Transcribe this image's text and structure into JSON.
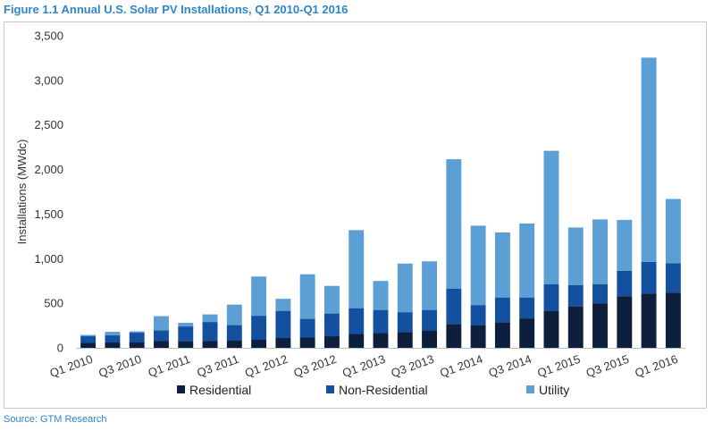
{
  "page": {
    "title": "Figure 1.1 Annual U.S. Solar PV Installations, Q1 2010-Q1 2016",
    "source": "Source: GTM Research"
  },
  "chart_data": {
    "type": "bar",
    "stacked": true,
    "title": "Figure 1.1 Annual U.S. Solar PV Installations, Q1 2010-Q1 2016",
    "xlabel": "",
    "ylabel": "Installations (MWdc)",
    "ylim": [
      0,
      3500
    ],
    "yticks": [
      0,
      500,
      1000,
      1500,
      2000,
      2500,
      3000,
      3500
    ],
    "ytick_labels": [
      "0",
      "500",
      "1,000",
      "1,500",
      "2,000",
      "2,500",
      "3,000",
      "3,500"
    ],
    "grid": false,
    "legend_position": "bottom",
    "categories": [
      "Q1 2010",
      "Q2 2010",
      "Q3 2010",
      "Q4 2010",
      "Q1 2011",
      "Q2 2011",
      "Q3 2011",
      "Q4 2011",
      "Q1 2012",
      "Q2 2012",
      "Q3 2012",
      "Q4 2012",
      "Q1 2013",
      "Q2 2013",
      "Q3 2013",
      "Q4 2013",
      "Q1 2014",
      "Q2 2014",
      "Q3 2014",
      "Q4 2014",
      "Q1 2015",
      "Q2 2015",
      "Q3 2015",
      "Q4 2015",
      "Q1 2016"
    ],
    "xtick_labels": [
      "Q1 2010",
      "Q3 2010",
      "Q1 2011",
      "Q3 2011",
      "Q1 2012",
      "Q3 2012",
      "Q1 2013",
      "Q3 2013",
      "Q1 2014",
      "Q3 2014",
      "Q1 2015",
      "Q3 2015",
      "Q1 2016"
    ],
    "series": [
      {
        "name": "Residential",
        "color": "#0d1f3c",
        "values": [
          55,
          60,
          60,
          75,
          70,
          75,
          80,
          90,
          110,
          115,
          130,
          155,
          165,
          175,
          195,
          265,
          255,
          285,
          330,
          415,
          465,
          500,
          580,
          610,
          620
        ]
      },
      {
        "name": "Non-Residential",
        "color": "#1450a0",
        "values": [
          75,
          80,
          110,
          120,
          170,
          215,
          175,
          270,
          305,
          210,
          255,
          290,
          260,
          225,
          230,
          400,
          225,
          280,
          235,
          300,
          240,
          215,
          285,
          355,
          330
        ]
      },
      {
        "name": "Utility",
        "color": "#5b9fd4",
        "values": [
          15,
          40,
          15,
          160,
          40,
          85,
          230,
          440,
          135,
          500,
          310,
          875,
          325,
          545,
          545,
          1450,
          890,
          730,
          830,
          1495,
          645,
          725,
          570,
          2290,
          720
        ]
      }
    ]
  }
}
